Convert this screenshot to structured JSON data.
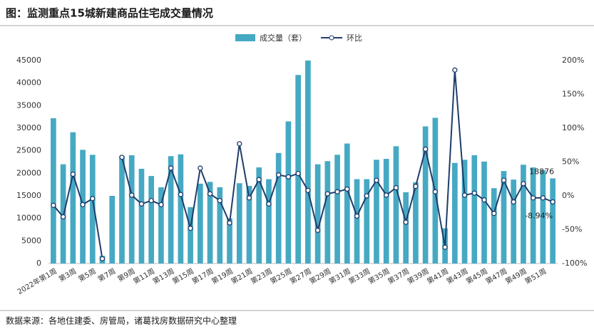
{
  "chart_data": {
    "type": "bar_line",
    "title": "图：监测重点15城新建商品住宅成交量情况",
    "source": "数据来源：各地住建委、房管局，诸葛找房数据研究中心整理",
    "categories": [
      "2022年第1周",
      null,
      "第3周",
      null,
      "第5周",
      null,
      "第7周",
      null,
      "第9周",
      null,
      "第11周",
      null,
      "第13周",
      null,
      "第15周",
      null,
      "第17周",
      null,
      "第19周",
      null,
      "第21周",
      null,
      "第23周",
      null,
      "第25周",
      null,
      "第27周",
      null,
      "第29周",
      null,
      "第31周",
      null,
      "第33周",
      null,
      "第35周",
      null,
      "第37周",
      null,
      "第39周",
      null,
      "第41周",
      null,
      "第43周",
      null,
      "第45周",
      null,
      "第47周",
      null,
      "第49周",
      null,
      "第51周",
      null
    ],
    "series": [
      {
        "name": "成交量（套）",
        "type": "bar",
        "color": "#46a9c3",
        "values": [
          32200,
          22000,
          29100,
          25200,
          24100,
          1700,
          15000,
          23800,
          24000,
          21000,
          19400,
          16900,
          23800,
          24200,
          12500,
          17700,
          18100,
          16900,
          10000,
          17800,
          17200,
          21300,
          18700,
          24500,
          31500,
          41800,
          45000,
          22000,
          22700,
          24100,
          26600,
          18700,
          18700,
          23000,
          23200,
          26000,
          15800,
          18000,
          30400,
          32300,
          7800,
          22300,
          23000,
          24000,
          22600,
          16700,
          20500,
          18600,
          21900,
          21300,
          20700,
          18876
        ],
        "value_labels": [
          null,
          null,
          null,
          null,
          null,
          null,
          null,
          null,
          null,
          null,
          null,
          null,
          null,
          null,
          null,
          null,
          null,
          null,
          null,
          null,
          null,
          null,
          null,
          null,
          null,
          null,
          null,
          null,
          null,
          null,
          null,
          null,
          null,
          null,
          null,
          null,
          null,
          null,
          null,
          null,
          null,
          null,
          null,
          null,
          null,
          null,
          null,
          null,
          null,
          null,
          null,
          "18876"
        ]
      },
      {
        "name": "环比",
        "type": "line",
        "axis": "y2",
        "color": "#1f3d6b",
        "values": [
          -14,
          -31,
          32,
          -13,
          -4,
          -93,
          null,
          57,
          1,
          -12,
          -7,
          -13,
          41,
          2,
          -48,
          41,
          3,
          -7,
          -40,
          77,
          -3,
          24,
          -12,
          31,
          28,
          33,
          8,
          -51,
          3,
          6,
          10,
          -30,
          0,
          23,
          1,
          12,
          -39,
          14,
          69,
          6,
          -76,
          186,
          1,
          4,
          -6,
          -26,
          23,
          -9,
          18,
          -3,
          -3,
          -8.94
        ],
        "value_labels": [
          null,
          null,
          null,
          null,
          null,
          null,
          null,
          null,
          null,
          null,
          null,
          null,
          null,
          null,
          null,
          null,
          null,
          null,
          null,
          null,
          null,
          null,
          null,
          null,
          null,
          null,
          null,
          null,
          null,
          null,
          null,
          null,
          null,
          null,
          null,
          null,
          null,
          null,
          null,
          null,
          null,
          null,
          null,
          null,
          null,
          null,
          null,
          null,
          null,
          null,
          null,
          "-8.94%"
        ]
      }
    ],
    "ylim": [
      0,
      45000
    ],
    "yticks": [
      0,
      5000,
      10000,
      15000,
      20000,
      25000,
      30000,
      35000,
      40000,
      45000
    ],
    "y2lim": [
      -100,
      200
    ],
    "y2ticks": [
      {
        "value": -100,
        "label": "-100%"
      },
      {
        "value": -50,
        "label": "-50%"
      },
      {
        "value": 0,
        "label": "0%"
      },
      {
        "value": 50,
        "label": "50%"
      },
      {
        "value": 100,
        "label": "100%"
      },
      {
        "value": 150,
        "label": "150%"
      },
      {
        "value": 200,
        "label": "200%"
      }
    ],
    "legend": "top"
  }
}
